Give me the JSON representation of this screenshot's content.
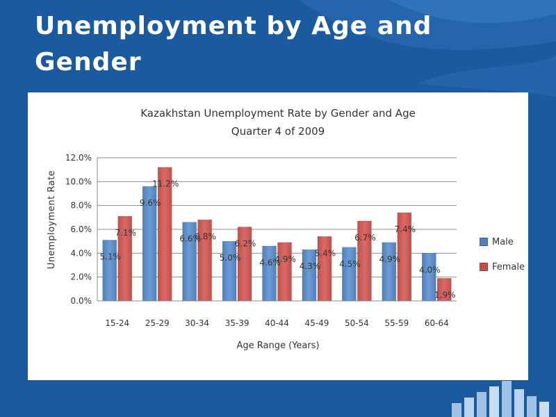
{
  "slide": {
    "title_line1": "Unemployment by Age and",
    "title_line2": "Gender"
  },
  "colors": {
    "background": "#1c5aa0",
    "male": "#4f81bd",
    "female": "#c0504d"
  },
  "chart_data": {
    "type": "bar",
    "title": "Kazakhstan Unemployment Rate by Gender and Age",
    "subtitle": "Quarter 4 of 2009",
    "xlabel": "Age Range (Years)",
    "ylabel": "Unemployment Rate",
    "categories": [
      "15-24",
      "25-29",
      "30-34",
      "35-39",
      "40-44",
      "45-49",
      "50-54",
      "55-59",
      "60-64"
    ],
    "series": [
      {
        "name": "Male",
        "values": [
          5.1,
          9.6,
          6.6,
          5.0,
          4.6,
          4.3,
          4.5,
          4.9,
          4.0
        ]
      },
      {
        "name": "Female",
        "values": [
          7.1,
          11.2,
          6.8,
          6.2,
          4.9,
          5.4,
          6.7,
          7.4,
          1.9
        ]
      }
    ],
    "value_labels": [
      [
        "5.1%",
        "9.6%",
        "6.6%",
        "5.0%",
        "4.6%",
        "4.3%",
        "4.5%",
        "4.9%",
        "4.0%"
      ],
      [
        "7.1%",
        "11.2%",
        "6.8%",
        "6.2%",
        "4.9%",
        "5.4%",
        "6.7%",
        "7.4%",
        "1.9%"
      ]
    ],
    "yticks": [
      "0.0%",
      "2.0%",
      "4.0%",
      "6.0%",
      "8.0%",
      "10.0%",
      "12.0%"
    ],
    "ylim": [
      0,
      12
    ],
    "grid": true,
    "legend_position": "right"
  }
}
